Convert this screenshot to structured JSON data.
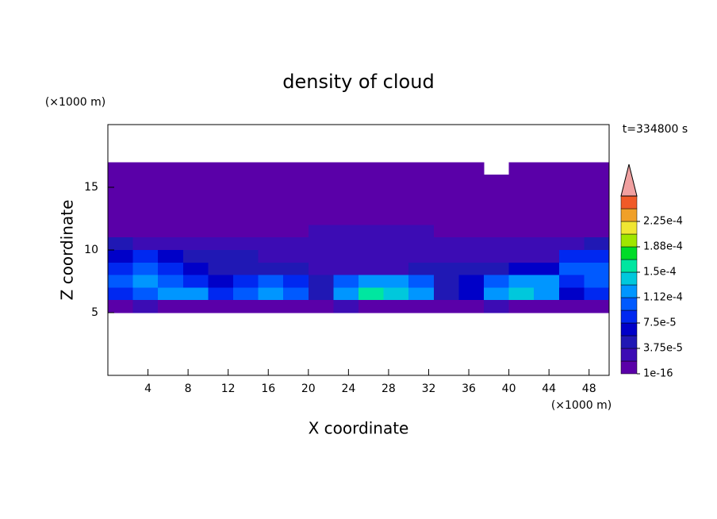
{
  "chart_data": {
    "type": "contour",
    "title": "density of cloud",
    "x_label": "X coordinate",
    "y_label": "Z coordinate",
    "x_unit": "(×1000 m)",
    "y_unit": "(×1000 m)",
    "time_label": "t=334800 s",
    "xlim": [
      0,
      50
    ],
    "ylim": [
      0,
      20
    ],
    "xticks": [
      4,
      8,
      12,
      16,
      20,
      24,
      28,
      32,
      36,
      40,
      44,
      48
    ],
    "yticks": [
      5,
      10,
      15
    ],
    "x": [
      1.25,
      3.75,
      6.25,
      8.75,
      11.25,
      13.75,
      16.25,
      18.75,
      21.25,
      23.75,
      26.25,
      28.75,
      31.25,
      33.75,
      36.25,
      38.75,
      41.25,
      43.75,
      46.25,
      48.75
    ],
    "y": [
      16.5,
      15.5,
      14.5,
      13.5,
      12.5,
      11.5,
      10.5,
      9.5,
      8.5,
      7.5,
      6.5,
      5.5
    ],
    "z": [
      [
        1e-16,
        1e-16,
        1e-16,
        1e-16,
        1e-16,
        1e-16,
        1e-16,
        1e-16,
        1e-16,
        1e-16,
        1e-16,
        1e-16,
        1e-16,
        1e-16,
        1e-16,
        null,
        1e-16,
        1e-16,
        1e-16,
        1e-16
      ],
      [
        1e-16,
        1e-16,
        1e-16,
        1e-16,
        1e-16,
        1e-16,
        1e-16,
        1e-16,
        1e-16,
        1e-16,
        1e-16,
        1e-16,
        1e-16,
        1e-16,
        1e-16,
        1e-16,
        1e-16,
        1e-16,
        1e-16,
        1e-16
      ],
      [
        1e-16,
        1e-16,
        1e-16,
        1e-16,
        1e-16,
        1e-16,
        1e-16,
        1e-16,
        1e-16,
        1e-16,
        1e-16,
        1e-16,
        1e-16,
        1e-16,
        1e-16,
        1e-16,
        1e-16,
        1e-16,
        1e-16,
        1e-16
      ],
      [
        1e-16,
        1e-16,
        1e-16,
        1e-16,
        1e-16,
        1e-16,
        1e-16,
        1e-16,
        1e-16,
        1e-16,
        1e-16,
        1e-16,
        1e-16,
        1e-16,
        1e-16,
        1e-16,
        1e-16,
        1e-16,
        1e-16,
        1e-16
      ],
      [
        1e-16,
        1e-16,
        1e-16,
        1e-16,
        1e-16,
        1e-16,
        1e-16,
        1e-16,
        1e-16,
        1e-16,
        1e-16,
        1e-16,
        1e-16,
        1e-16,
        1e-16,
        1e-16,
        1e-16,
        1e-16,
        1e-16,
        1e-16
      ],
      [
        1e-16,
        1e-16,
        1e-16,
        1e-16,
        1e-16,
        1e-16,
        1e-16,
        1e-16,
        1.875e-05,
        1.875e-05,
        1.875e-05,
        1.875e-05,
        1.875e-05,
        1e-16,
        1e-16,
        1e-16,
        1e-16,
        1e-16,
        1e-16,
        1e-16
      ],
      [
        3.75e-05,
        1.875e-05,
        1.875e-05,
        1.875e-05,
        1.875e-05,
        1.875e-05,
        1.875e-05,
        1.875e-05,
        1.875e-05,
        1.875e-05,
        1.875e-05,
        1.875e-05,
        1.875e-05,
        1.875e-05,
        1.875e-05,
        1.875e-05,
        1.875e-05,
        1.875e-05,
        1.875e-05,
        3.75e-05
      ],
      [
        5.625e-05,
        7.5e-05,
        5.625e-05,
        3.75e-05,
        3.75e-05,
        3.75e-05,
        1.875e-05,
        1.875e-05,
        1.875e-05,
        1.875e-05,
        1.875e-05,
        1.875e-05,
        1.875e-05,
        1.875e-05,
        1.875e-05,
        1.875e-05,
        1.875e-05,
        1.875e-05,
        7.5e-05,
        7.5e-05
      ],
      [
        7.5e-05,
        9.375e-05,
        7.5e-05,
        5.625e-05,
        3.75e-05,
        3.75e-05,
        3.75e-05,
        3.75e-05,
        1.875e-05,
        1.875e-05,
        1.875e-05,
        1.875e-05,
        3.75e-05,
        3.75e-05,
        3.75e-05,
        3.75e-05,
        5.625e-05,
        5.625e-05,
        9.375e-05,
        9.375e-05
      ],
      [
        9.375e-05,
        0.0001125,
        9.375e-05,
        7.5e-05,
        5.625e-05,
        7.5e-05,
        9.375e-05,
        7.5e-05,
        3.75e-05,
        9.375e-05,
        0.0001125,
        0.0001125,
        9.375e-05,
        3.75e-05,
        5.625e-05,
        9.375e-05,
        0.0001125,
        0.0001125,
        7.5e-05,
        9.375e-05
      ],
      [
        7.5e-05,
        9.375e-05,
        0.0001125,
        0.0001125,
        7.5e-05,
        9.375e-05,
        0.0001125,
        9.375e-05,
        3.75e-05,
        0.0001125,
        0.00015,
        0.00013125,
        0.0001125,
        3.75e-05,
        5.625e-05,
        0.0001125,
        0.00013125,
        0.0001125,
        5.625e-05,
        7.5e-05
      ],
      [
        1e-16,
        1.875e-05,
        1e-16,
        1e-16,
        1e-16,
        1e-16,
        1e-16,
        1e-16,
        1e-16,
        1.875e-05,
        1e-16,
        1e-16,
        1e-16,
        1e-16,
        1e-16,
        1.875e-05,
        1e-16,
        1e-16,
        1e-16,
        1e-16
      ]
    ],
    "levels": [
      1e-16,
      1.875e-05,
      3.75e-05,
      5.625e-05,
      7.5e-05,
      9.375e-05,
      0.0001125,
      0.00013125,
      0.00015,
      0.00016875,
      0.0001875,
      0.00020625,
      0.000225,
      0.00024375
    ],
    "level_colors": [
      "#5a00a8",
      "#3c0cb4",
      "#2018b4",
      "#0000c8",
      "#0028f0",
      "#005aff",
      "#0096ff",
      "#00c8dc",
      "#00e6a0",
      "#00dc28",
      "#a0e600",
      "#f0e632",
      "#f0a028",
      "#f05a28"
    ],
    "over_color": "#f0a0a0",
    "clim": [
      1e-16,
      0.0002625
    ],
    "cticks": [
      {
        "value": 1e-16,
        "label": "1e-16"
      },
      {
        "value": 3.75e-05,
        "label": "3.75e-5"
      },
      {
        "value": 7.5e-05,
        "label": "7.5e-5"
      },
      {
        "value": 0.0001125,
        "label": "1.12e-4"
      },
      {
        "value": 0.00015,
        "label": "1.5e-4"
      },
      {
        "value": 0.0001875,
        "label": "1.88e-4"
      },
      {
        "value": 0.000225,
        "label": "2.25e-4"
      }
    ]
  }
}
